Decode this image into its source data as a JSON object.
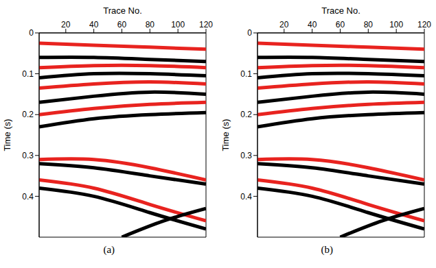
{
  "chart_data": [
    {
      "type": "line",
      "label": "(a)",
      "xlabel": "Trace No.",
      "ylabel": "Time (s)",
      "xlim": [
        1,
        120
      ],
      "xticks": [
        20,
        40,
        60,
        80,
        100,
        120
      ],
      "ylim": [
        0,
        0.5
      ],
      "yticks": [
        0,
        0.1,
        0.2,
        0.3,
        0.4
      ],
      "series": [
        {
          "color": "#e8231f",
          "x": [
            1,
            40,
            80,
            120
          ],
          "values": [
            0.025,
            0.03,
            0.035,
            0.04
          ]
        },
        {
          "color": "#000000",
          "x": [
            1,
            40,
            80,
            120
          ],
          "values": [
            0.06,
            0.06,
            0.065,
            0.07
          ]
        },
        {
          "color": "#e8231f",
          "x": [
            1,
            40,
            80,
            120
          ],
          "values": [
            0.085,
            0.08,
            0.08,
            0.085
          ]
        },
        {
          "color": "#000000",
          "x": [
            1,
            40,
            80,
            120
          ],
          "values": [
            0.11,
            0.1,
            0.1,
            0.105
          ]
        },
        {
          "color": "#e8231f",
          "x": [
            1,
            40,
            80,
            120
          ],
          "values": [
            0.135,
            0.125,
            0.12,
            0.125
          ]
        },
        {
          "color": "#000000",
          "x": [
            1,
            40,
            80,
            120
          ],
          "values": [
            0.17,
            0.155,
            0.145,
            0.15
          ]
        },
        {
          "color": "#e8231f",
          "x": [
            1,
            40,
            80,
            120
          ],
          "values": [
            0.2,
            0.185,
            0.175,
            0.17
          ]
        },
        {
          "color": "#000000",
          "x": [
            1,
            40,
            80,
            120
          ],
          "values": [
            0.23,
            0.21,
            0.2,
            0.195
          ]
        },
        {
          "color": "#e8231f",
          "x": [
            1,
            40,
            80,
            120
          ],
          "values": [
            0.31,
            0.31,
            0.33,
            0.36
          ]
        },
        {
          "color": "#000000",
          "x": [
            1,
            40,
            80,
            120
          ],
          "values": [
            0.32,
            0.33,
            0.35,
            0.37
          ]
        },
        {
          "color": "#e8231f",
          "x": [
            1,
            40,
            80,
            120
          ],
          "values": [
            0.36,
            0.38,
            0.42,
            0.46
          ]
        },
        {
          "color": "#000000",
          "x": [
            1,
            40,
            80,
            120
          ],
          "values": [
            0.38,
            0.4,
            0.44,
            0.48
          ]
        },
        {
          "color": "#000000",
          "x": [
            60,
            90,
            120
          ],
          "values": [
            0.5,
            0.46,
            0.43
          ]
        }
      ]
    },
    {
      "type": "line",
      "label": "(b)",
      "xlabel": "Trace No.",
      "ylabel": "Time (s)",
      "xlim": [
        1,
        120
      ],
      "xticks": [
        20,
        40,
        60,
        80,
        100,
        120
      ],
      "ylim": [
        0,
        0.5
      ],
      "yticks": [
        0,
        0.1,
        0.2,
        0.3,
        0.4
      ],
      "series": [
        {
          "color": "#e8231f",
          "x": [
            1,
            40,
            80,
            120
          ],
          "values": [
            0.025,
            0.03,
            0.035,
            0.04
          ]
        },
        {
          "color": "#000000",
          "x": [
            1,
            40,
            80,
            120
          ],
          "values": [
            0.06,
            0.06,
            0.065,
            0.07
          ]
        },
        {
          "color": "#e8231f",
          "x": [
            1,
            40,
            80,
            120
          ],
          "values": [
            0.085,
            0.08,
            0.08,
            0.085
          ]
        },
        {
          "color": "#000000",
          "x": [
            1,
            40,
            80,
            120
          ],
          "values": [
            0.11,
            0.1,
            0.1,
            0.105
          ]
        },
        {
          "color": "#e8231f",
          "x": [
            1,
            40,
            80,
            120
          ],
          "values": [
            0.135,
            0.125,
            0.12,
            0.125
          ]
        },
        {
          "color": "#000000",
          "x": [
            1,
            40,
            80,
            120
          ],
          "values": [
            0.17,
            0.155,
            0.145,
            0.15
          ]
        },
        {
          "color": "#e8231f",
          "x": [
            1,
            40,
            80,
            120
          ],
          "values": [
            0.2,
            0.185,
            0.175,
            0.17
          ]
        },
        {
          "color": "#000000",
          "x": [
            1,
            40,
            80,
            120
          ],
          "values": [
            0.23,
            0.21,
            0.2,
            0.195
          ]
        },
        {
          "color": "#e8231f",
          "x": [
            1,
            40,
            80,
            120
          ],
          "values": [
            0.31,
            0.31,
            0.33,
            0.36
          ]
        },
        {
          "color": "#000000",
          "x": [
            1,
            40,
            80,
            120
          ],
          "values": [
            0.32,
            0.33,
            0.35,
            0.37
          ]
        },
        {
          "color": "#e8231f",
          "x": [
            1,
            40,
            80,
            120
          ],
          "values": [
            0.36,
            0.38,
            0.42,
            0.46
          ]
        },
        {
          "color": "#000000",
          "x": [
            1,
            40,
            80,
            120
          ],
          "values": [
            0.38,
            0.4,
            0.44,
            0.48
          ]
        },
        {
          "color": "#000000",
          "x": [
            60,
            90,
            120
          ],
          "values": [
            0.5,
            0.46,
            0.43
          ]
        }
      ]
    }
  ]
}
